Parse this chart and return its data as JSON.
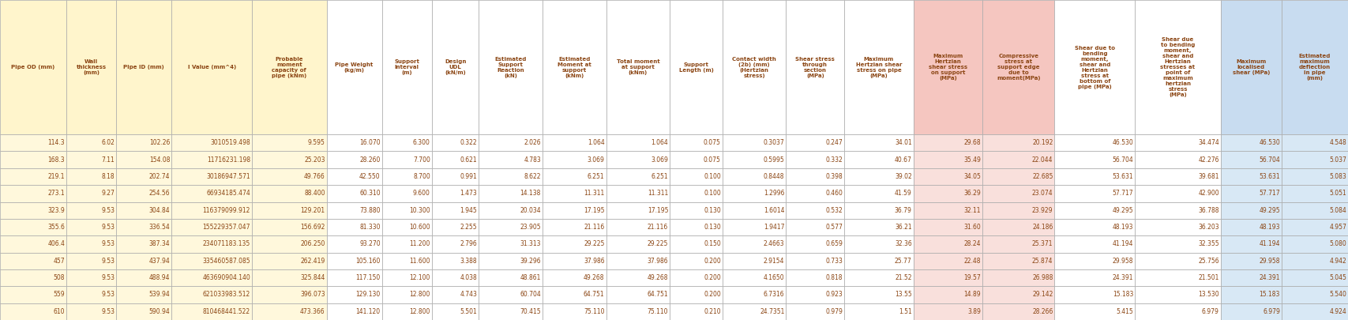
{
  "col_headers": [
    "Pipe OD (mm)",
    "Wall\nthickness\n(mm)",
    "Pipe ID (mm)",
    "I Value (mm^4)",
    "Probable\nmoment\ncapacity of\npipe (kNm)",
    "Pipe Weight\n(kg/m)",
    "Support\nInterval\n(m)",
    "Design\nUDL\n(kN/m)",
    "Estimated\nSupport\nReaction\n(kN)",
    "Estimated\nMoment at\nsupport\n(kNm)",
    "Total moment\nat support\n(kNm)",
    "Support\nLength (m)",
    "Contact width\n(2b) (mm)\n(Hertzian\nstress)",
    "Shear stress\nthrough\nsection\n(MPa)",
    "Maximum\nHertzian shear\nstress on pipe\n(MPa)",
    "Maximum\nHertzian\nshear stress\non support\n(MPa)",
    "Compressive\nstress at\nsupport edge\ndue to\nmoment(MPa)",
    "Shear due to\nbending\nmoment,\nshear and\nHertzian\nstress at\nbottom of\npipe (MPa)",
    "Shear due\nto bending\nmoment,\nshear and\nHertzian\nstresses at\npoint of\nmaximum\nhertzian\nstress\n(MPa)",
    "Maximum\nlocalised\nshear (MPa)",
    "Estimated\nmaximum\ndeflection\nin pipe\n(mm)"
  ],
  "col_header_bgs": [
    "#FFF5CC",
    "#FFF5CC",
    "#FFF5CC",
    "#FFF5CC",
    "#FFF5CC",
    "#FFFFFF",
    "#FFFFFF",
    "#FFFFFF",
    "#FFFFFF",
    "#FFFFFF",
    "#FFFFFF",
    "#FFFFFF",
    "#FFFFFF",
    "#FFFFFF",
    "#FFFFFF",
    "#F5C6C0",
    "#F5C6C0",
    "#FFFFFF",
    "#FFFFFF",
    "#C8DCF0",
    "#C8DCF0"
  ],
  "col_data_bgs": [
    "#FFF8DC",
    "#FFF8DC",
    "#FFF8DC",
    "#FFF8DC",
    "#FFF8DC",
    "#FFFFFF",
    "#FFFFFF",
    "#FFFFFF",
    "#FFFFFF",
    "#FFFFFF",
    "#FFFFFF",
    "#FFFFFF",
    "#FFFFFF",
    "#FFFFFF",
    "#FFFFFF",
    "#F9E0DC",
    "#F9E0DC",
    "#FFFFFF",
    "#FFFFFF",
    "#D8E8F5",
    "#D8E8F5"
  ],
  "col_widths_raw": [
    48,
    36,
    40,
    58,
    54,
    40,
    36,
    34,
    46,
    46,
    46,
    38,
    46,
    42,
    50,
    50,
    52,
    58,
    62,
    44,
    48
  ],
  "rows": [
    [
      "114.3",
      "6.02",
      "102.26",
      "3010519.498",
      "9.595",
      "16.070",
      "6.300",
      "0.322",
      "2.026",
      "1.064",
      "1.064",
      "0.075",
      "0.3037",
      "0.247",
      "34.01",
      "29.68",
      "20.192",
      "46.530",
      "34.474",
      "46.530",
      "4.548"
    ],
    [
      "168.3",
      "7.11",
      "154.08",
      "11716231.198",
      "25.203",
      "28.260",
      "7.700",
      "0.621",
      "4.783",
      "3.069",
      "3.069",
      "0.075",
      "0.5995",
      "0.332",
      "40.67",
      "35.49",
      "22.044",
      "56.704",
      "42.276",
      "56.704",
      "5.037"
    ],
    [
      "219.1",
      "8.18",
      "202.74",
      "30186947.571",
      "49.766",
      "42.550",
      "8.700",
      "0.991",
      "8.622",
      "6.251",
      "6.251",
      "0.100",
      "0.8448",
      "0.398",
      "39.02",
      "34.05",
      "22.685",
      "53.631",
      "39.681",
      "53.631",
      "5.083"
    ],
    [
      "273.1",
      "9.27",
      "254.56",
      "66934185.474",
      "88.400",
      "60.310",
      "9.600",
      "1.473",
      "14.138",
      "11.311",
      "11.311",
      "0.100",
      "1.2996",
      "0.460",
      "41.59",
      "36.29",
      "23.074",
      "57.717",
      "42.900",
      "57.717",
      "5.051"
    ],
    [
      "323.9",
      "9.53",
      "304.84",
      "116379099.912",
      "129.201",
      "73.880",
      "10.300",
      "1.945",
      "20.034",
      "17.195",
      "17.195",
      "0.130",
      "1.6014",
      "0.532",
      "36.79",
      "32.11",
      "23.929",
      "49.295",
      "36.788",
      "49.295",
      "5.084"
    ],
    [
      "355.6",
      "9.53",
      "336.54",
      "155229357.047",
      "156.692",
      "81.330",
      "10.600",
      "2.255",
      "23.905",
      "21.116",
      "21.116",
      "0.130",
      "1.9417",
      "0.577",
      "36.21",
      "31.60",
      "24.186",
      "48.193",
      "36.203",
      "48.193",
      "4.957"
    ],
    [
      "406.4",
      "9.53",
      "387.34",
      "234071183.135",
      "206.250",
      "93.270",
      "11.200",
      "2.796",
      "31.313",
      "29.225",
      "29.225",
      "0.150",
      "2.4663",
      "0.659",
      "32.36",
      "28.24",
      "25.371",
      "41.194",
      "32.355",
      "41.194",
      "5.080"
    ],
    [
      "457",
      "9.53",
      "437.94",
      "335460587.085",
      "262.419",
      "105.160",
      "11.600",
      "3.388",
      "39.296",
      "37.986",
      "37.986",
      "0.200",
      "2.9154",
      "0.733",
      "25.77",
      "22.48",
      "25.874",
      "29.958",
      "25.756",
      "29.958",
      "4.942"
    ],
    [
      "508",
      "9.53",
      "488.94",
      "463690904.140",
      "325.844",
      "117.150",
      "12.100",
      "4.038",
      "48.861",
      "49.268",
      "49.268",
      "0.200",
      "4.1650",
      "0.818",
      "21.52",
      "19.57",
      "26.988",
      "24.391",
      "21.501",
      "24.391",
      "5.045"
    ],
    [
      "559",
      "9.53",
      "539.94",
      "621033983.512",
      "396.073",
      "129.130",
      "12.800",
      "4.743",
      "60.704",
      "64.751",
      "64.751",
      "0.200",
      "6.7316",
      "0.923",
      "13.55",
      "14.89",
      "29.142",
      "15.183",
      "13.530",
      "15.183",
      "5.540"
    ],
    [
      "610",
      "9.53",
      "590.94",
      "810468441.522",
      "473.366",
      "141.120",
      "12.800",
      "5.501",
      "70.415",
      "75.110",
      "75.110",
      "0.210",
      "24.7351",
      "0.979",
      "1.51",
      "3.89",
      "28.266",
      "5.415",
      "6.979",
      "6.979",
      "4.924"
    ]
  ],
  "text_color": "#8B4513",
  "border_color": "#AAAAAA",
  "fig_bg": "#FFFFFF",
  "header_font_size": 5.0,
  "data_font_size": 5.5
}
